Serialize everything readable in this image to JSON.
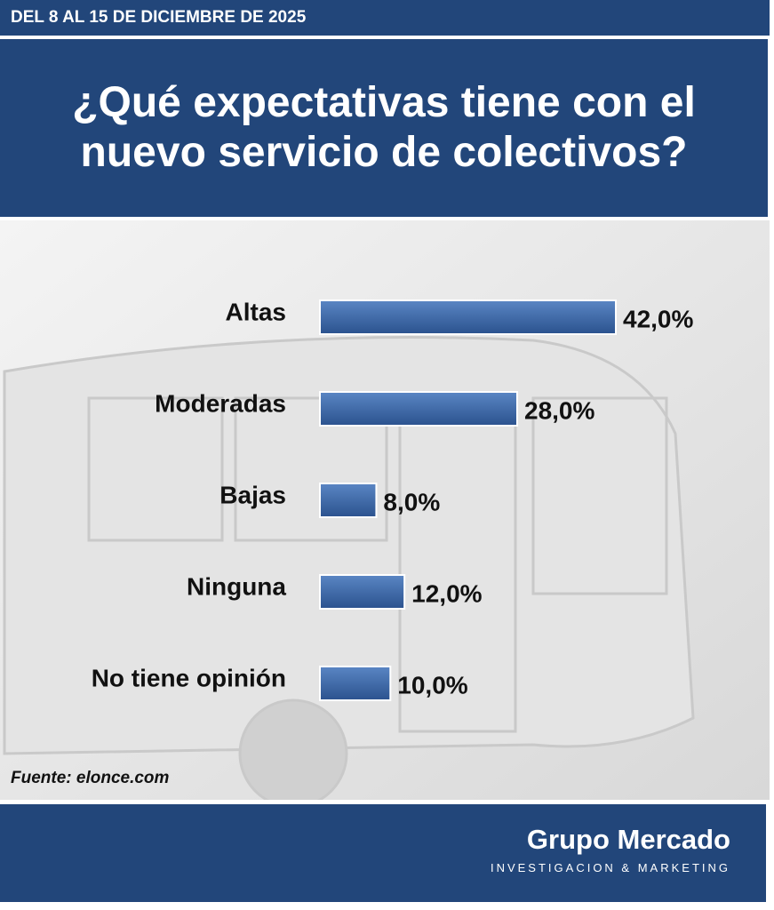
{
  "header": {
    "date": "DEL 8 AL 15 DE DICIEMBRE DE 2025"
  },
  "chart_data": {
    "type": "bar",
    "orientation": "horizontal",
    "title": "¿Qué expectativas tiene con el nuevo servicio de colectivos?",
    "categories": [
      "Altas",
      "Moderadas",
      "Bajas",
      "Ninguna",
      "No tiene opinión"
    ],
    "values": [
      42,
      28,
      8,
      12,
      10
    ],
    "value_labels": [
      "42,0%",
      "28,0%",
      "8,0%",
      "12,0%",
      "10,0%"
    ],
    "color": "#3a66a6",
    "source": "Fuente: elonce.com"
  },
  "branding": {
    "name": "Grupo Mercado",
    "tagline": "INVESTIGACION & MARKETING"
  }
}
